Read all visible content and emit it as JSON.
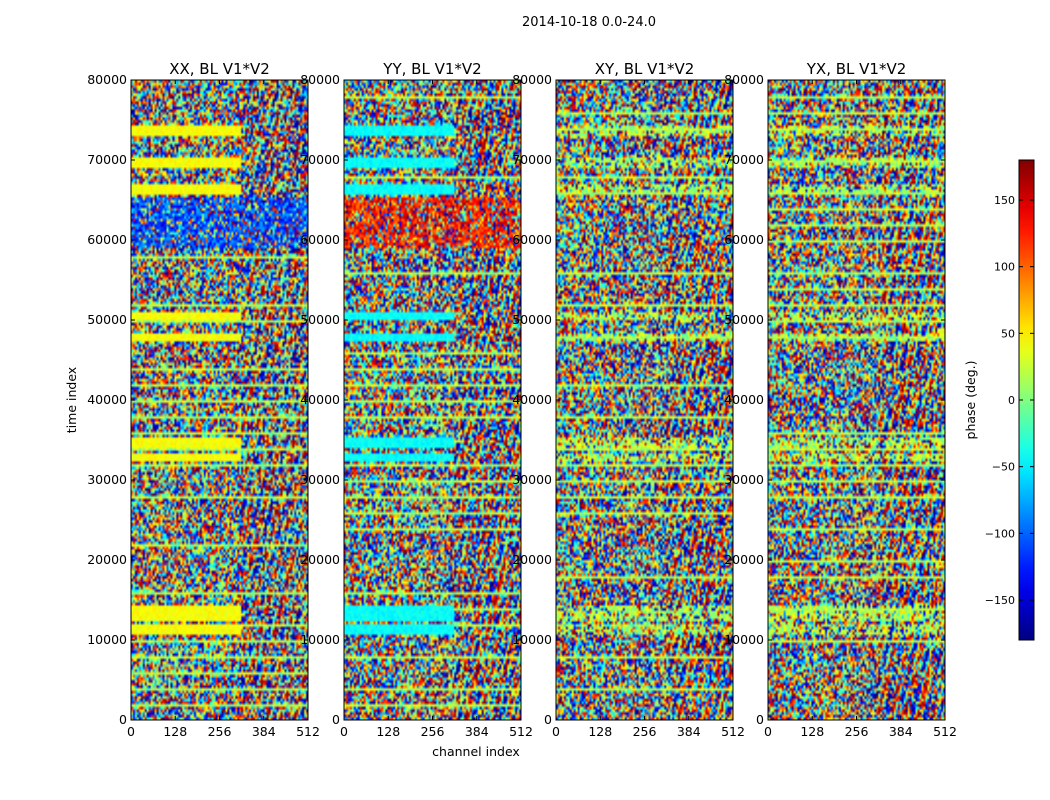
{
  "figure": {
    "suptitle": "2014-10-18 0.0-24.0",
    "xlabel": "channel index",
    "ylabel": "time index",
    "colorbar_label": "phase (deg.)"
  },
  "chart_data": {
    "type": "heatmap",
    "panels": [
      {
        "title": "XX, BL V1*V2"
      },
      {
        "title": "YY, BL V1*V2"
      },
      {
        "title": "XY, BL V1*V2"
      },
      {
        "title": "YX, BL V1*V2"
      }
    ],
    "xlim": [
      0,
      512
    ],
    "xticks": [
      0,
      128,
      256,
      384,
      512
    ],
    "ylim": [
      0,
      80000
    ],
    "yticks": [
      0,
      10000,
      20000,
      30000,
      40000,
      50000,
      60000,
      70000,
      80000
    ],
    "colormap": "jet",
    "clim": [
      -180,
      180
    ],
    "colorbar_ticks": [
      -150,
      -100,
      -50,
      0,
      50,
      100,
      150
    ],
    "colorbar_tick_labels": [
      "−150",
      "−100",
      "−50",
      "0",
      "50",
      "100",
      "150"
    ]
  }
}
